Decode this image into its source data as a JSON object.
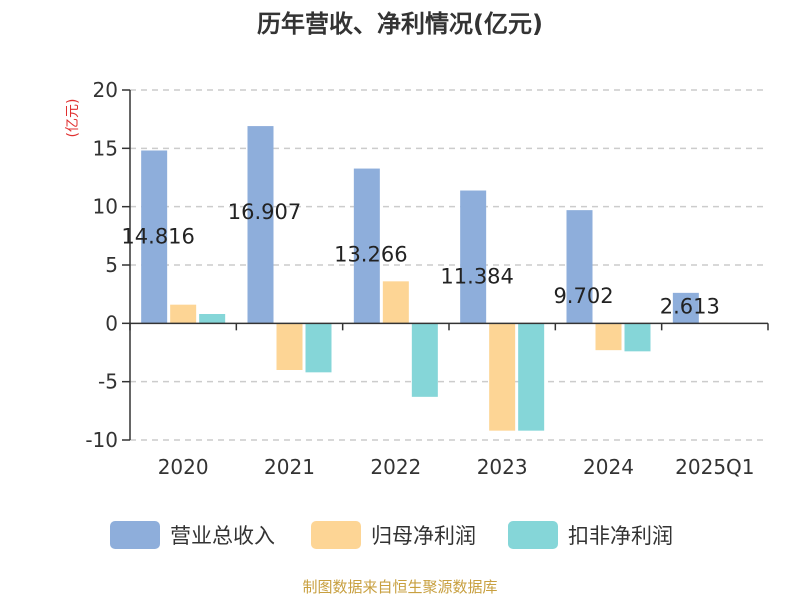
{
  "chart_data": {
    "type": "bar",
    "title": "历年营收、净利情况(亿元)",
    "ylabel": "(亿元)",
    "categories": [
      "2020",
      "2021",
      "2022",
      "2023",
      "2024",
      "2025Q1"
    ],
    "ylim": [
      -10,
      20
    ],
    "yticks": [
      20,
      15,
      10,
      5,
      0,
      -5,
      -10
    ],
    "grid": true,
    "legend_position": "bottom",
    "series": [
      {
        "name": "营业总收入",
        "color": "#8eaedb",
        "values": [
          14.816,
          16.907,
          13.266,
          11.384,
          9.702,
          2.613
        ]
      },
      {
        "name": "归母净利润",
        "color": "#fdd595",
        "values": [
          1.6,
          -4.0,
          3.6,
          -9.2,
          -2.3,
          0.05
        ]
      },
      {
        "name": "扣非净利润",
        "color": "#85d6d8",
        "values": [
          0.8,
          -4.2,
          -6.3,
          -9.2,
          -2.4,
          0.03
        ]
      }
    ],
    "data_labels": [
      "14.816",
      "16.907",
      "13.266",
      "11.384",
      "9.702",
      "2.613"
    ]
  },
  "source": "制图数据来自恒生聚源数据库"
}
